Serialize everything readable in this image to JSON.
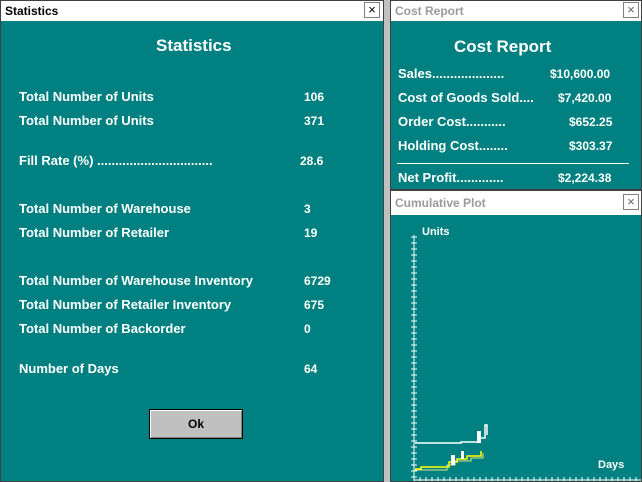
{
  "statistics": {
    "title": "Statistics",
    "heading": "Statistics",
    "rows": [
      {
        "label": "Total Number of Units",
        "value": "106"
      },
      {
        "label": "Total Number of Units",
        "value": "371"
      },
      {
        "label": "Fill Rate (%) ................................",
        "value": "28.6"
      },
      {
        "label": "Total Number of Warehouse",
        "value": "3"
      },
      {
        "label": "Total Number of Retailer",
        "value": "19"
      },
      {
        "label": "Total Number of Warehouse Inventory",
        "value": "6729"
      },
      {
        "label": "Total Number of Retailer Inventory",
        "value": "675"
      },
      {
        "label": "Total Number of Backorder",
        "value": "0"
      },
      {
        "label": "Number of Days",
        "value": "64"
      }
    ],
    "ok_label": "Ok",
    "close_glyph": "×"
  },
  "cost_report": {
    "title": "Cost Report",
    "heading": "Cost Report",
    "rows": [
      {
        "label": "Sales....................",
        "value": "$10,600.00"
      },
      {
        "label": "Cost of Goods Sold....",
        "value": "$7,420.00"
      },
      {
        "label": "Order Cost...........",
        "value": "$652.25"
      },
      {
        "label": "Holding Cost........",
        "value": "$303.37"
      }
    ],
    "total": {
      "label": "Net Profit.............",
      "value": "$2,224.38"
    },
    "close_glyph": "×"
  },
  "cumulative_plot": {
    "title": "Cumulative Plot",
    "y_label": "Units",
    "x_label": "Days",
    "close_glyph": "×",
    "colors": {
      "background": "#008080",
      "axis": "#ffffff",
      "series_white": "#ffffff",
      "series_yellow": "#ffff00"
    }
  },
  "colors": {
    "window_bg": "#008080",
    "desktop": "#808080",
    "text": "#ffffff"
  }
}
